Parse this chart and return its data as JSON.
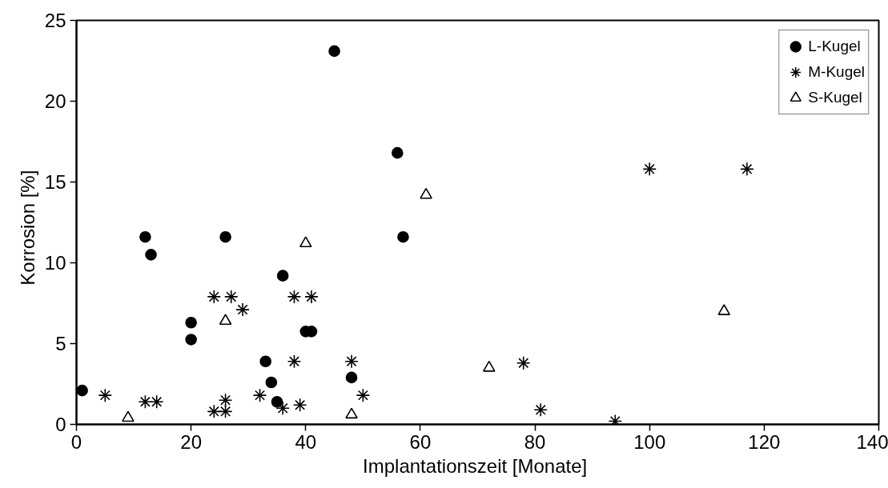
{
  "chart_data": {
    "type": "scatter",
    "xlabel": "Implantationszeit  [Monate]",
    "ylabel": "Korrosion   [%]",
    "xlim": [
      0,
      140
    ],
    "xticks": [
      0,
      20,
      40,
      60,
      80,
      100,
      120,
      140
    ],
    "ylim": [
      0,
      25
    ],
    "yticks": [
      0,
      5,
      10,
      15,
      20,
      25
    ],
    "grid": false,
    "legend": "top right",
    "series": [
      {
        "name": "L-Kugel",
        "color": "#000000",
        "marker": "circle",
        "x": [
          1,
          12,
          13,
          26,
          20,
          20,
          36,
          40,
          41,
          33,
          34,
          35,
          48,
          56,
          57,
          45
        ],
        "values": [
          2.1,
          11.6,
          10.5,
          11.6,
          6.3,
          5.25,
          9.2,
          5.75,
          5.75,
          3.9,
          2.6,
          1.4,
          2.9,
          16.8,
          11.6,
          23.1
        ]
      },
      {
        "name": "M-Kugel",
        "color": "#000000",
        "marker": "cross",
        "x": [
          5,
          12,
          14,
          24,
          26,
          26,
          24,
          27,
          29,
          32,
          36,
          38,
          41,
          38,
          39,
          48,
          50,
          78,
          81,
          94,
          100,
          117
        ],
        "values": [
          1.8,
          1.4,
          1.4,
          0.8,
          0.8,
          1.5,
          7.9,
          7.9,
          7.1,
          1.8,
          1.0,
          7.9,
          7.9,
          3.9,
          1.2,
          3.9,
          1.8,
          3.8,
          0.9,
          0.2,
          15.8,
          15.8
        ]
      },
      {
        "name": "S-Kugel",
        "color": "#000000",
        "marker": "triangle",
        "x": [
          9,
          26,
          40,
          48,
          61,
          72,
          113
        ],
        "values": [
          0.4,
          6.4,
          11.2,
          0.6,
          14.2,
          3.5,
          7.0
        ]
      }
    ]
  }
}
